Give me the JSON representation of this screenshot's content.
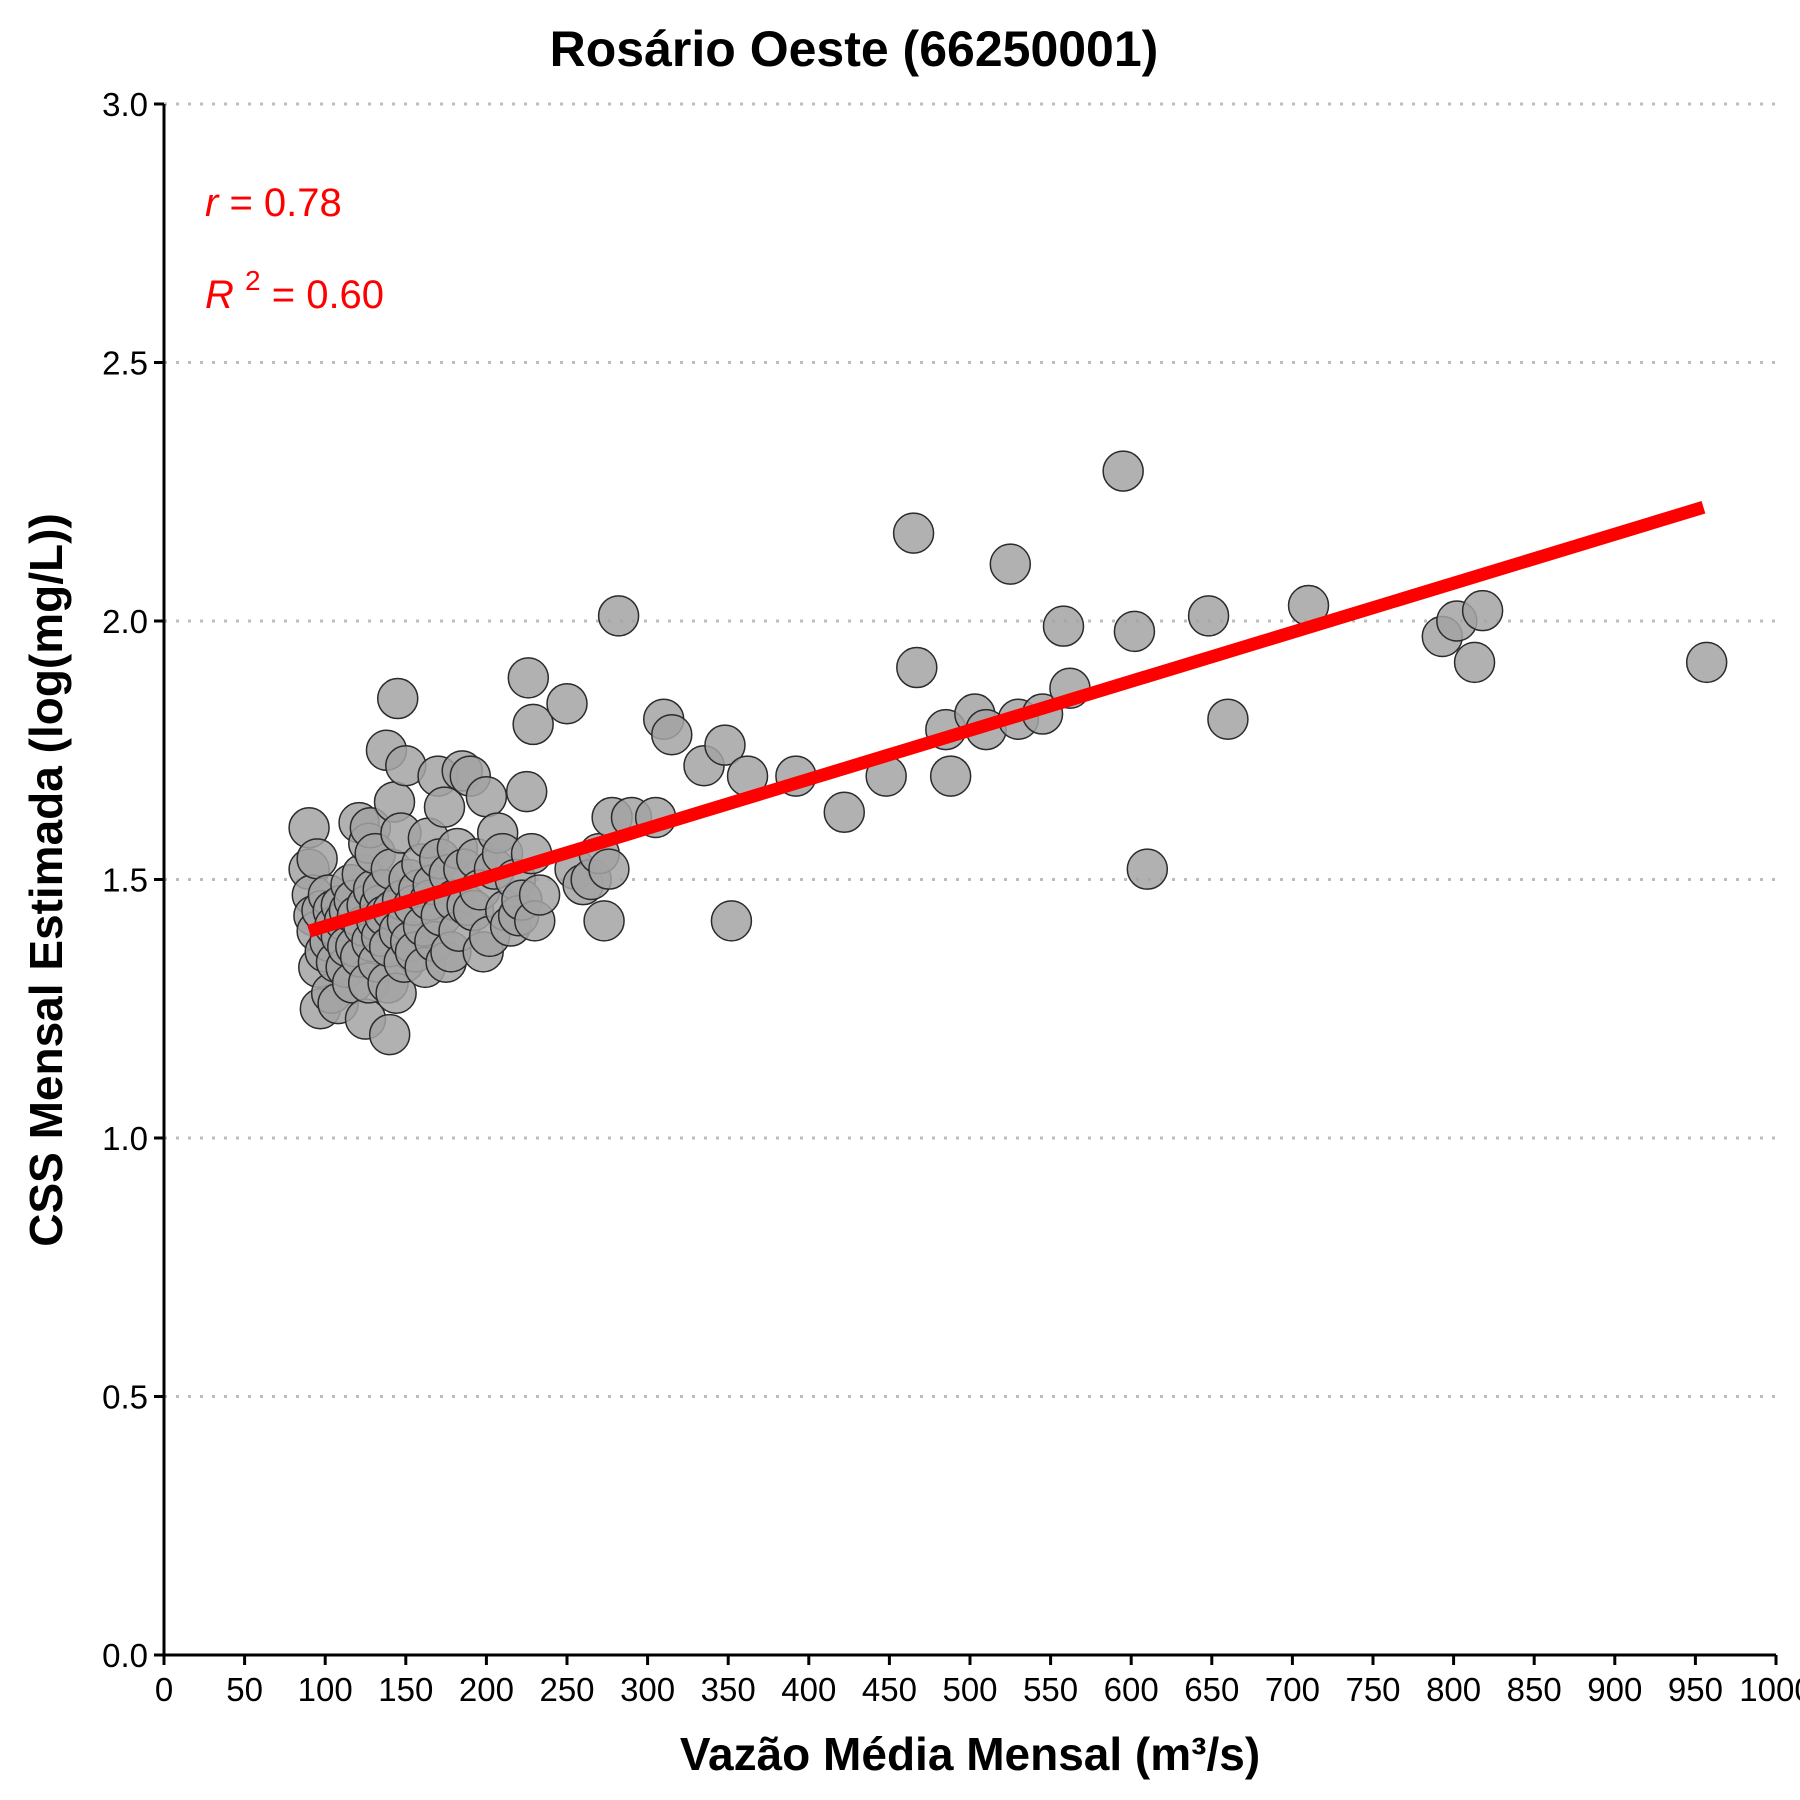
{
  "chart_data": {
    "type": "scatter",
    "title": "Rosário Oeste (66250001)",
    "xlabel": "Vazão Média Mensal (m³/s)",
    "ylabel": "CSS Mensal Estimada (log(mg/L))",
    "xlim": [
      0,
      1000
    ],
    "ylim": [
      0,
      3
    ],
    "x_ticks": [
      0,
      50,
      100,
      150,
      200,
      250,
      300,
      350,
      400,
      450,
      500,
      550,
      600,
      650,
      700,
      750,
      800,
      850,
      900,
      950,
      1000
    ],
    "x_tick_labels": [
      "0",
      "50",
      "100",
      "150",
      "200",
      "250",
      "300",
      "350",
      "400",
      "450",
      "500",
      "550",
      "600",
      "650",
      "700",
      "750",
      "800",
      "850",
      "900",
      "950",
      "1000"
    ],
    "y_ticks": [
      0,
      0.5,
      1,
      1.5,
      2,
      2.5,
      3
    ],
    "y_tick_labels": [
      "0.0",
      "0.5",
      "1.0",
      "1.5",
      "2.0",
      "2.5",
      "3.0"
    ],
    "grid": "horizontal dotted",
    "colors": {
      "points_fill": "#a3a3a3",
      "points_stroke": "#2b2b2b",
      "fit_line": "#ff0000",
      "grid": "#bdbdbd"
    },
    "annotations": {
      "r_label": "r",
      "r_value": "= 0.78",
      "r2_label": "R",
      "r2_sup": "2",
      "r2_value": "= 0.60"
    },
    "fit_line": {
      "x": [
        90,
        955
      ],
      "y": [
        1.4,
        2.22
      ]
    },
    "points": [
      [
        90,
        1.6
      ],
      [
        90,
        1.52
      ],
      [
        92,
        1.47
      ],
      [
        93,
        1.43
      ],
      [
        95,
        1.54
      ],
      [
        95,
        1.4
      ],
      [
        96,
        1.33
      ],
      [
        97,
        1.25
      ],
      [
        98,
        1.44
      ],
      [
        100,
        1.36
      ],
      [
        102,
        1.47
      ],
      [
        103,
        1.38
      ],
      [
        104,
        1.28
      ],
      [
        105,
        1.44
      ],
      [
        106,
        1.41
      ],
      [
        107,
        1.34
      ],
      [
        108,
        1.26
      ],
      [
        110,
        1.45
      ],
      [
        110,
        1.39
      ],
      [
        112,
        1.42
      ],
      [
        113,
        1.33
      ],
      [
        114,
        1.37
      ],
      [
        115,
        1.44
      ],
      [
        116,
        1.49
      ],
      [
        117,
        1.3
      ],
      [
        118,
        1.46
      ],
      [
        119,
        1.37
      ],
      [
        120,
        1.43
      ],
      [
        121,
        1.61
      ],
      [
        122,
        1.35
      ],
      [
        123,
        1.51
      ],
      [
        124,
        1.41
      ],
      [
        125,
        1.23
      ],
      [
        126,
        1.45
      ],
      [
        127,
        1.57
      ],
      [
        127,
        1.3
      ],
      [
        128,
        1.6
      ],
      [
        129,
        1.38
      ],
      [
        130,
        1.48
      ],
      [
        131,
        1.55
      ],
      [
        132,
        1.42
      ],
      [
        133,
        1.34
      ],
      [
        134,
        1.45
      ],
      [
        135,
        1.39
      ],
      [
        136,
        1.48
      ],
      [
        137,
        1.43
      ],
      [
        138,
        1.75
      ],
      [
        139,
        1.3
      ],
      [
        140,
        1.37
      ],
      [
        140,
        1.2
      ],
      [
        141,
        1.52
      ],
      [
        142,
        1.44
      ],
      [
        143,
        1.65
      ],
      [
        144,
        1.28
      ],
      [
        145,
        1.85
      ],
      [
        146,
        1.4
      ],
      [
        147,
        1.59
      ],
      [
        148,
        1.46
      ],
      [
        149,
        1.34
      ],
      [
        150,
        1.72
      ],
      [
        151,
        1.42
      ],
      [
        152,
        1.5
      ],
      [
        153,
        1.38
      ],
      [
        155,
        1.45
      ],
      [
        156,
        1.36
      ],
      [
        158,
        1.48
      ],
      [
        160,
        1.53
      ],
      [
        161,
        1.41
      ],
      [
        162,
        1.33
      ],
      [
        164,
        1.58
      ],
      [
        165,
        1.46
      ],
      [
        167,
        1.49
      ],
      [
        168,
        1.38
      ],
      [
        170,
        1.7
      ],
      [
        171,
        1.54
      ],
      [
        172,
        1.43
      ],
      [
        174,
        1.64
      ],
      [
        175,
        1.34
      ],
      [
        177,
        1.51
      ],
      [
        178,
        1.36
      ],
      [
        180,
        1.46
      ],
      [
        182,
        1.56
      ],
      [
        183,
        1.4
      ],
      [
        185,
        1.71
      ],
      [
        186,
        1.52
      ],
      [
        188,
        1.45
      ],
      [
        190,
        1.7
      ],
      [
        192,
        1.44
      ],
      [
        194,
        1.54
      ],
      [
        196,
        1.48
      ],
      [
        198,
        1.36
      ],
      [
        200,
        1.66
      ],
      [
        202,
        1.39
      ],
      [
        205,
        1.52
      ],
      [
        207,
        1.59
      ],
      [
        210,
        1.55
      ],
      [
        212,
        1.44
      ],
      [
        215,
        1.41
      ],
      [
        218,
        1.5
      ],
      [
        220,
        1.43
      ],
      [
        222,
        1.46
      ],
      [
        225,
        1.67
      ],
      [
        226,
        1.89
      ],
      [
        228,
        1.55
      ],
      [
        229,
        1.8
      ],
      [
        230,
        1.42
      ],
      [
        233,
        1.47
      ],
      [
        250,
        1.84
      ],
      [
        255,
        1.52
      ],
      [
        260,
        1.49
      ],
      [
        265,
        1.5
      ],
      [
        270,
        1.55
      ],
      [
        273,
        1.42
      ],
      [
        276,
        1.52
      ],
      [
        278,
        1.62
      ],
      [
        282,
        2.01
      ],
      [
        290,
        1.62
      ],
      [
        305,
        1.62
      ],
      [
        310,
        1.81
      ],
      [
        315,
        1.78
      ],
      [
        335,
        1.72
      ],
      [
        348,
        1.76
      ],
      [
        352,
        1.42
      ],
      [
        362,
        1.7
      ],
      [
        392,
        1.7
      ],
      [
        422,
        1.63
      ],
      [
        448,
        1.7
      ],
      [
        465,
        2.17
      ],
      [
        467,
        1.91
      ],
      [
        485,
        1.79
      ],
      [
        488,
        1.7
      ],
      [
        503,
        1.82
      ],
      [
        510,
        1.79
      ],
      [
        525,
        2.11
      ],
      [
        530,
        1.81
      ],
      [
        545,
        1.82
      ],
      [
        558,
        1.99
      ],
      [
        562,
        1.87
      ],
      [
        595,
        2.29
      ],
      [
        602,
        1.98
      ],
      [
        610,
        1.52
      ],
      [
        648,
        2.01
      ],
      [
        660,
        1.81
      ],
      [
        710,
        2.03
      ],
      [
        793,
        1.97
      ],
      [
        802,
        2.0
      ],
      [
        813,
        1.92
      ],
      [
        818,
        2.02
      ],
      [
        957,
        1.92
      ]
    ]
  }
}
